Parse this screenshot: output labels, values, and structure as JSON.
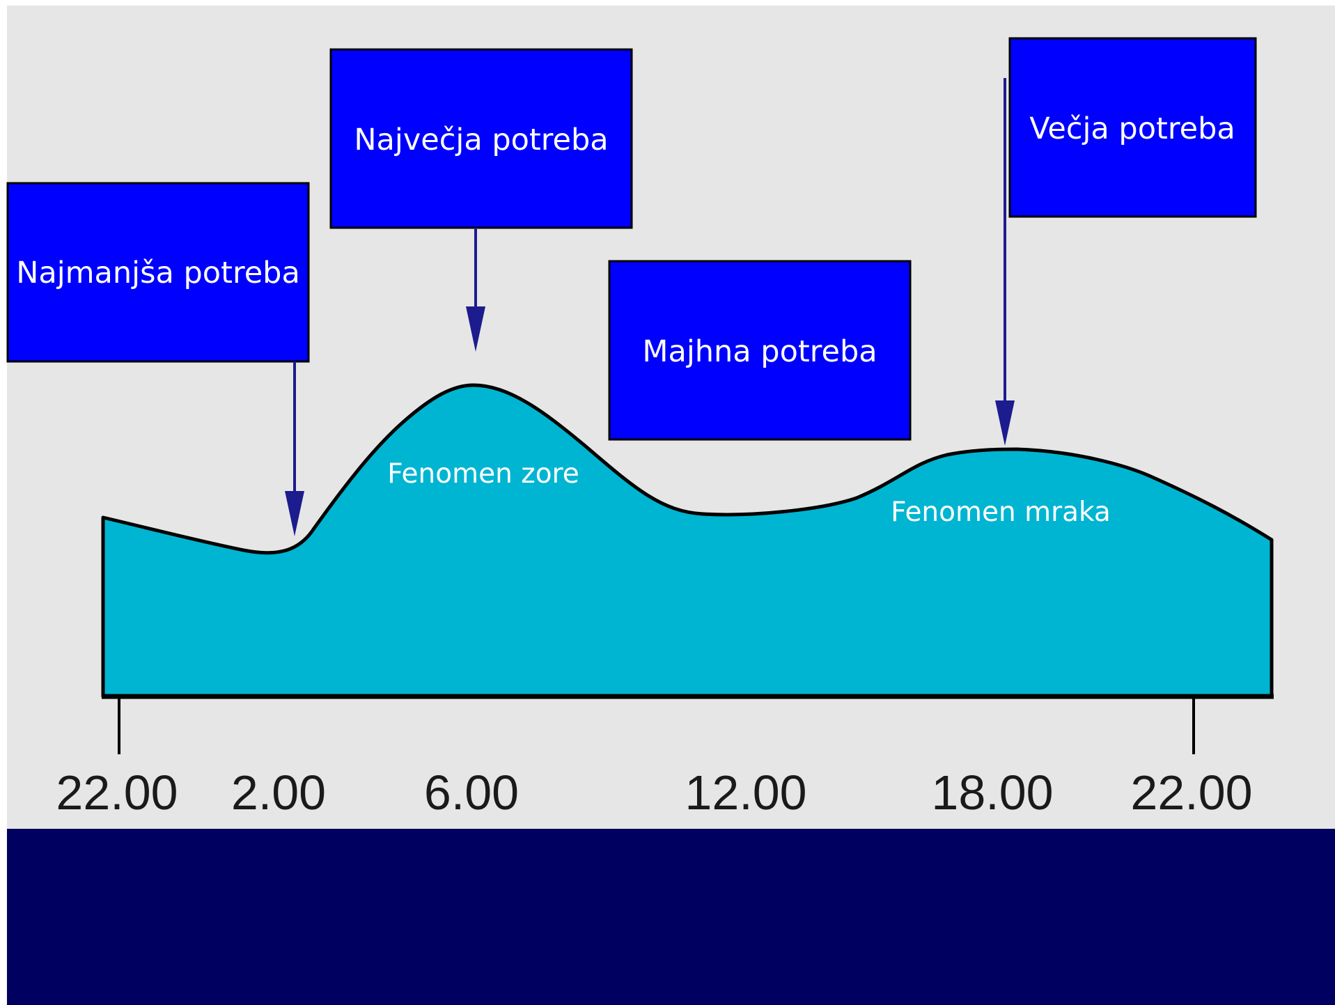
{
  "colors": {
    "page_background": "#ffffff",
    "chart_background": "#e6e6e6",
    "footer_band": "#000060",
    "curve_fill": "#00b5d2",
    "callout_box": "#0000ff",
    "arrow": "#1c1c8e"
  },
  "callouts": [
    {
      "label": "Najmanjša potreba"
    },
    {
      "label": "Največja potreba"
    },
    {
      "label": "Majhna potreba"
    },
    {
      "label": "Večja potreba"
    }
  ],
  "annotations": [
    {
      "label": "Fenomen zore"
    },
    {
      "label": "Fenomen mraka"
    }
  ],
  "chart_data": {
    "type": "area",
    "title": "",
    "xlabel": "",
    "ylabel": "",
    "tick_labels": [
      "22.00",
      "2.00",
      "6.00",
      "12.00",
      "18.00",
      "22.00"
    ],
    "grid": false,
    "legend": "none"
  }
}
